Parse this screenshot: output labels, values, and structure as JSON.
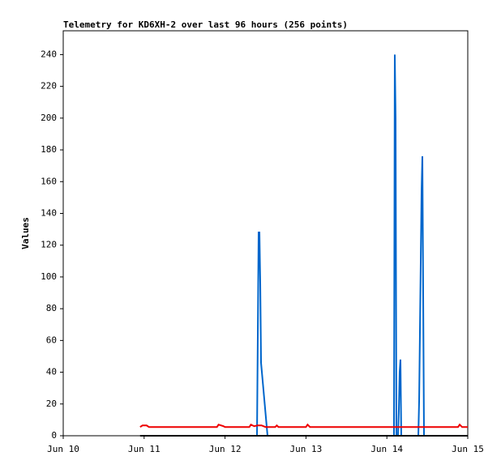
{
  "chart_data": {
    "type": "line",
    "title": "Telemetry for KD6XH-2 over last 96 hours (256 points)",
    "y_label": "Values",
    "xlim": [
      10,
      15
    ],
    "ylim": [
      0,
      255
    ],
    "xticks": [
      {
        "value": 10,
        "label": "Jun 10"
      },
      {
        "value": 11,
        "label": "Jun 11"
      },
      {
        "value": 12,
        "label": "Jun 12"
      },
      {
        "value": 13,
        "label": "Jun 13"
      },
      {
        "value": 14,
        "label": "Jun 14"
      },
      {
        "value": 15,
        "label": "Jun 15"
      }
    ],
    "yticks": [
      0,
      20,
      40,
      60,
      80,
      100,
      120,
      140,
      160,
      180,
      200,
      220,
      240
    ],
    "series": [
      {
        "color": "#000000",
        "x": [
          10.95,
          15
        ],
        "values": [
          0,
          0
        ]
      },
      {
        "color": "#ee0000",
        "x": [
          10.95,
          10.98,
          11.03,
          11.06,
          11.9,
          11.92,
          11.98,
          12.0,
          12.3,
          12.32,
          12.36,
          12.4,
          12.45,
          12.5,
          12.62,
          12.64,
          12.66,
          13.0,
          13.02,
          13.05,
          14.88,
          14.9,
          14.93,
          15
        ],
        "values": [
          5.5,
          6.5,
          6.5,
          5.5,
          5.5,
          7,
          6,
          5.5,
          5.5,
          7,
          6,
          6.5,
          6.5,
          5.5,
          5.5,
          6.5,
          5.5,
          5.5,
          7,
          5.5,
          5.5,
          7,
          5.5,
          5.5
        ]
      },
      {
        "color": "#0066cc",
        "x": [
          12.395,
          12.405,
          12.415,
          12.425,
          12.435,
          12.445,
          12.525,
          14.088,
          14.098,
          14.108,
          14.118,
          14.138,
          14.148,
          14.158,
          14.168,
          14.178,
          14.389,
          14.399,
          14.409,
          14.419,
          14.429,
          14.439,
          14.449,
          14.459
        ],
        "values": [
          0,
          64,
          128,
          128,
          96,
          46,
          0,
          0,
          240,
          200,
          0,
          0,
          16,
          40,
          48,
          0,
          0,
          22,
          66,
          110,
          154,
          176,
          88,
          0
        ]
      }
    ]
  }
}
